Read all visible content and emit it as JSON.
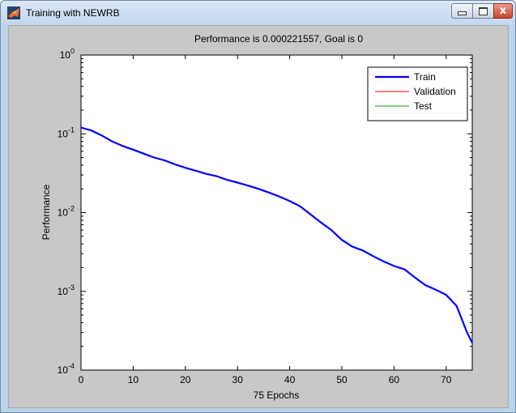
{
  "window": {
    "title": "Training with NEWRB",
    "icon": "matlab-icon",
    "controls": [
      "minimize-icon",
      "maximize-icon",
      "close-icon"
    ],
    "close_glyph": "x"
  },
  "chart_data": {
    "type": "line",
    "title": "Performance is 0.000221557, Goal is 0",
    "xlabel": "75 Epochs",
    "ylabel": "Performance",
    "xlim": [
      0,
      75
    ],
    "ylim": [
      0.0001,
      1
    ],
    "yscale": "log",
    "x_ticks": [
      "0",
      "10",
      "20",
      "30",
      "40",
      "50",
      "60",
      "70"
    ],
    "y_ticks": [
      {
        "base": "10",
        "exp": "0"
      },
      {
        "base": "10",
        "exp": "-1"
      },
      {
        "base": "10",
        "exp": "-2"
      },
      {
        "base": "10",
        "exp": "-3"
      },
      {
        "base": "10",
        "exp": "-4"
      }
    ],
    "legend_position": "top-right",
    "background": "#c8c8c8",
    "series": [
      {
        "name": "Train",
        "color": "#0000ff",
        "x": [
          0,
          2,
          4,
          6,
          8,
          10,
          12,
          14,
          16,
          18,
          20,
          22,
          24,
          26,
          28,
          30,
          32,
          34,
          36,
          38,
          40,
          42,
          44,
          46,
          48,
          50,
          52,
          54,
          56,
          58,
          60,
          62,
          64,
          66,
          68,
          70,
          72,
          74,
          75
        ],
        "y": [
          0.12,
          0.11,
          0.095,
          0.08,
          0.07,
          0.063,
          0.056,
          0.05,
          0.046,
          0.041,
          0.037,
          0.034,
          0.031,
          0.029,
          0.026,
          0.024,
          0.022,
          0.02,
          0.018,
          0.016,
          0.014,
          0.012,
          0.0095,
          0.0075,
          0.006,
          0.0045,
          0.0037,
          0.0033,
          0.0028,
          0.0024,
          0.0021,
          0.0019,
          0.0015,
          0.0012,
          0.00105,
          0.0009,
          0.00065,
          0.0003,
          0.000221557
        ]
      },
      {
        "name": "Validation",
        "color": "#ff0000",
        "x": [],
        "y": []
      },
      {
        "name": "Test",
        "color": "#00aa00",
        "x": [],
        "y": []
      }
    ]
  }
}
